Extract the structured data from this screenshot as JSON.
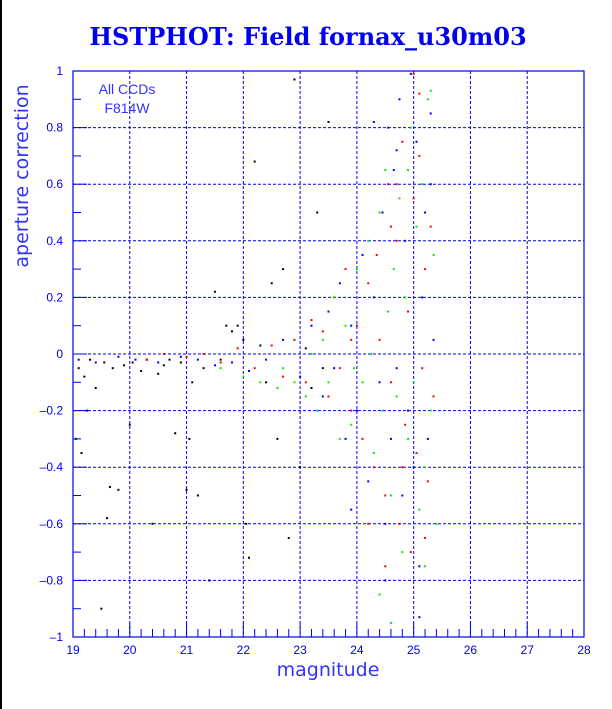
{
  "chart_data": {
    "type": "scatter",
    "title": "HSTPHOT: Field fornax_u30m03",
    "xlabel": "magnitude",
    "ylabel": "aperture correction",
    "annotations": [
      "All CCDs",
      "F814W"
    ],
    "xlim": [
      19,
      28
    ],
    "ylim": [
      -1,
      1
    ],
    "xticks": [
      "19",
      "20",
      "21",
      "22",
      "23",
      "24",
      "25",
      "26",
      "27",
      "28"
    ],
    "yticks": [
      "1",
      "0.8",
      "0.6",
      "0.4",
      "0.2",
      "0",
      "-0.2",
      "-0.4",
      "-0.6",
      "-0.8",
      "-1"
    ],
    "grid": true,
    "colors": {
      "axis": "#0000ee",
      "grid": "#0000ee",
      "title": "#0000ee"
    },
    "series": [
      {
        "name": "black",
        "color": "#000000",
        "points": [
          [
            19.05,
            -0.3
          ],
          [
            19.1,
            -0.05
          ],
          [
            19.15,
            -0.35
          ],
          [
            19.2,
            -0.08
          ],
          [
            19.3,
            -0.02
          ],
          [
            19.4,
            -0.12
          ],
          [
            19.5,
            -0.9
          ],
          [
            19.55,
            -0.03
          ],
          [
            19.6,
            -0.58
          ],
          [
            19.65,
            -0.47
          ],
          [
            19.7,
            -0.05
          ],
          [
            19.8,
            -0.48
          ],
          [
            19.9,
            -0.04
          ],
          [
            20.0,
            -0.25
          ],
          [
            20.05,
            -0.03
          ],
          [
            20.2,
            -0.06
          ],
          [
            20.3,
            -0.02
          ],
          [
            20.4,
            -0.6
          ],
          [
            20.5,
            -0.07
          ],
          [
            20.6,
            -0.04
          ],
          [
            20.8,
            -0.28
          ],
          [
            20.9,
            -0.03
          ],
          [
            21.0,
            -0.48
          ],
          [
            21.05,
            -0.3
          ],
          [
            21.1,
            -0.1
          ],
          [
            21.2,
            -0.5
          ],
          [
            21.3,
            -0.05
          ],
          [
            21.5,
            0.22
          ],
          [
            21.6,
            -0.02
          ],
          [
            21.8,
            0.08
          ],
          [
            21.9,
            0.1
          ],
          [
            22.0,
            0.05
          ],
          [
            22.1,
            -0.72
          ],
          [
            22.2,
            0.68
          ],
          [
            22.4,
            -0.1
          ],
          [
            22.5,
            0.25
          ],
          [
            22.6,
            -0.3
          ],
          [
            22.7,
            0.3
          ],
          [
            22.8,
            -0.65
          ],
          [
            22.9,
            0.97
          ],
          [
            23.0,
            -0.4
          ],
          [
            23.1,
            0.02
          ],
          [
            23.3,
            0.5
          ],
          [
            23.5,
            0.82
          ],
          [
            23.4,
            -0.05
          ],
          [
            22.3,
            0.03
          ],
          [
            21.7,
            0.1
          ],
          [
            20.7,
            -0.02
          ],
          [
            19.25,
            -0.2
          ],
          [
            23.2,
            -0.12
          ],
          [
            21.4,
            -0.8
          ],
          [
            22.05,
            -0.6
          ]
        ]
      },
      {
        "name": "red",
        "color": "#ff0000",
        "points": [
          [
            20.3,
            -0.02
          ],
          [
            20.6,
            0.0
          ],
          [
            21.0,
            -0.01
          ],
          [
            21.3,
            0.0
          ],
          [
            21.6,
            -0.03
          ],
          [
            21.9,
            0.02
          ],
          [
            22.2,
            -0.05
          ],
          [
            22.5,
            0.03
          ],
          [
            22.7,
            -0.08
          ],
          [
            22.9,
            0.05
          ],
          [
            23.1,
            -0.1
          ],
          [
            23.2,
            0.12
          ],
          [
            23.4,
            0.08
          ],
          [
            23.5,
            -0.15
          ],
          [
            23.6,
            0.2
          ],
          [
            23.7,
            -0.05
          ],
          [
            23.8,
            0.3
          ],
          [
            23.9,
            -0.2
          ],
          [
            24.0,
            0.1
          ],
          [
            24.1,
            -0.3
          ],
          [
            24.2,
            0.25
          ],
          [
            24.3,
            -0.4
          ],
          [
            24.35,
            0.35
          ],
          [
            24.4,
            0.05
          ],
          [
            24.5,
            -0.5
          ],
          [
            24.55,
            0.6
          ],
          [
            24.6,
            -0.1
          ],
          [
            24.7,
            0.4
          ],
          [
            24.75,
            -0.6
          ],
          [
            24.8,
            0.75
          ],
          [
            24.85,
            -0.25
          ],
          [
            24.9,
            0.15
          ],
          [
            24.95,
            -0.7
          ],
          [
            25.0,
            0.55
          ],
          [
            25.05,
            -0.35
          ],
          [
            25.1,
            0.7
          ],
          [
            25.15,
            -0.05
          ],
          [
            25.2,
            0.3
          ],
          [
            25.25,
            -0.45
          ],
          [
            25.3,
            0.45
          ],
          [
            25.35,
            -0.15
          ],
          [
            25.0,
            0.99
          ],
          [
            25.1,
            0.92
          ],
          [
            24.7,
            0.6
          ],
          [
            24.2,
            -0.6
          ],
          [
            24.5,
            -0.75
          ],
          [
            23.9,
            0.05
          ],
          [
            24.6,
            0.45
          ],
          [
            25.2,
            -0.65
          ],
          [
            24.8,
            -0.4
          ]
        ]
      },
      {
        "name": "green",
        "color": "#00ee00",
        "points": [
          [
            21.6,
            -0.05
          ],
          [
            22.0,
            -0.08
          ],
          [
            22.3,
            -0.1
          ],
          [
            22.6,
            -0.12
          ],
          [
            22.9,
            -0.1
          ],
          [
            23.1,
            -0.15
          ],
          [
            23.3,
            -0.2
          ],
          [
            23.4,
            0.05
          ],
          [
            23.5,
            -0.1
          ],
          [
            23.6,
            0.2
          ],
          [
            23.7,
            -0.3
          ],
          [
            23.8,
            0.1
          ],
          [
            23.9,
            -0.25
          ],
          [
            24.0,
            0.3
          ],
          [
            24.1,
            -0.1
          ],
          [
            24.2,
            0.4
          ],
          [
            24.3,
            -0.35
          ],
          [
            24.4,
            0.5
          ],
          [
            24.45,
            -0.2
          ],
          [
            24.5,
            0.65
          ],
          [
            24.6,
            -0.5
          ],
          [
            24.65,
            0.3
          ],
          [
            24.7,
            -0.15
          ],
          [
            24.75,
            0.55
          ],
          [
            24.8,
            -0.7
          ],
          [
            24.85,
            0.2
          ],
          [
            24.9,
            -0.3
          ],
          [
            24.95,
            0.8
          ],
          [
            25.0,
            -0.1
          ],
          [
            25.05,
            0.45
          ],
          [
            25.1,
            -0.55
          ],
          [
            25.15,
            0.6
          ],
          [
            25.2,
            -0.4
          ],
          [
            25.25,
            0.9
          ],
          [
            25.3,
            -0.2
          ],
          [
            25.35,
            0.35
          ],
          [
            25.4,
            -0.6
          ],
          [
            24.6,
            -0.95
          ],
          [
            24.4,
            -0.85
          ],
          [
            25.3,
            0.93
          ],
          [
            23.95,
            -0.05
          ],
          [
            24.25,
            0.0
          ],
          [
            24.55,
            0.15
          ],
          [
            25.2,
            -0.75
          ],
          [
            23.2,
            0.0
          ],
          [
            22.7,
            -0.05
          ],
          [
            24.9,
            0.65
          ]
        ]
      },
      {
        "name": "blue",
        "color": "#0000ff",
        "points": [
          [
            19.1,
            -0.02
          ],
          [
            19.4,
            -0.03
          ],
          [
            19.8,
            -0.01
          ],
          [
            20.1,
            -0.02
          ],
          [
            20.5,
            -0.03
          ],
          [
            20.9,
            -0.01
          ],
          [
            21.2,
            -0.02
          ],
          [
            21.5,
            -0.04
          ],
          [
            21.8,
            -0.03
          ],
          [
            22.1,
            -0.06
          ],
          [
            22.4,
            -0.02
          ],
          [
            22.7,
            0.05
          ],
          [
            23.0,
            -0.08
          ],
          [
            23.2,
            0.1
          ],
          [
            23.4,
            -0.15
          ],
          [
            23.5,
            0.15
          ],
          [
            23.6,
            -0.05
          ],
          [
            23.7,
            0.25
          ],
          [
            23.8,
            -0.3
          ],
          [
            23.9,
            0.1
          ],
          [
            24.0,
            -0.2
          ],
          [
            24.1,
            0.35
          ],
          [
            24.2,
            -0.45
          ],
          [
            24.3,
            0.2
          ],
          [
            24.4,
            -0.1
          ],
          [
            24.45,
            0.5
          ],
          [
            24.5,
            -0.6
          ],
          [
            24.55,
            0.8
          ],
          [
            24.6,
            -0.3
          ],
          [
            24.65,
            0.65
          ],
          [
            24.7,
            -0.05
          ],
          [
            24.75,
            0.9
          ],
          [
            24.8,
            -0.5
          ],
          [
            24.85,
            0.4
          ],
          [
            24.9,
            -0.2
          ],
          [
            24.95,
            0.99
          ],
          [
            25.0,
            -0.4
          ],
          [
            25.05,
            0.75
          ],
          [
            25.1,
            -0.75
          ],
          [
            25.15,
            0.2
          ],
          [
            25.2,
            0.5
          ],
          [
            25.25,
            -0.3
          ],
          [
            25.3,
            0.85
          ],
          [
            25.35,
            0.05
          ],
          [
            25.1,
            -0.93
          ],
          [
            24.3,
            0.82
          ],
          [
            24.7,
            0.72
          ],
          [
            23.9,
            -0.55
          ],
          [
            24.5,
            -0.8
          ],
          [
            25.3,
            0.6
          ]
        ]
      }
    ]
  }
}
